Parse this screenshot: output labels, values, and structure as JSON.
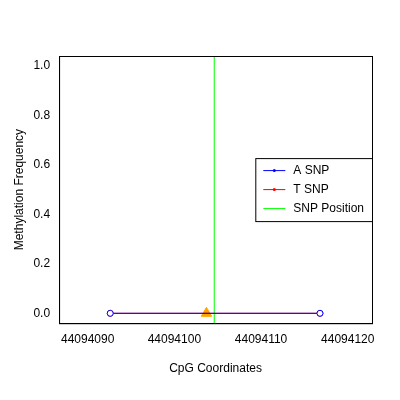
{
  "chart_data": {
    "type": "line",
    "x_label": "CpG Coordinates",
    "y_label": "Methylation Frequency",
    "xlim": [
      44094086.7,
      44094122.8
    ],
    "xticks": [
      44094090,
      44094100,
      44094110,
      44094120
    ],
    "ylim": [
      -0.04,
      1.04
    ],
    "yticks": [
      {
        "value": 0,
        "label": "0.0"
      },
      {
        "value": 0.2,
        "label": "0.2"
      },
      {
        "value": 0.4,
        "label": "0.4"
      },
      {
        "value": 0.6,
        "label": "0.6"
      },
      {
        "value": 0.8,
        "label": "0.8"
      },
      {
        "value": 1,
        "label": "1.0"
      }
    ],
    "grid": false,
    "legend": "right",
    "series": [
      {
        "name": "A SNP",
        "color": "#0000ff",
        "x": [
          44094092.6,
          44094116.8
        ],
        "values": [
          0,
          0
        ],
        "marker": "open_circle",
        "line_style": "solid"
      },
      {
        "name": "T SNP",
        "color": "#ff0000",
        "x": [
          44094092.6,
          44094116.8
        ],
        "values": [
          0,
          0
        ],
        "marker": "open_circle",
        "line_style": "solid"
      },
      {
        "name": "SNP Position",
        "color": "#00ff00",
        "type": "vline",
        "x": [
          44094104.6
        ],
        "line_style": "solid",
        "marker": "none"
      }
    ],
    "highlight": {
      "x": 44094103.7,
      "y": 0,
      "color": "#ffa500",
      "marker": "triangle"
    }
  }
}
